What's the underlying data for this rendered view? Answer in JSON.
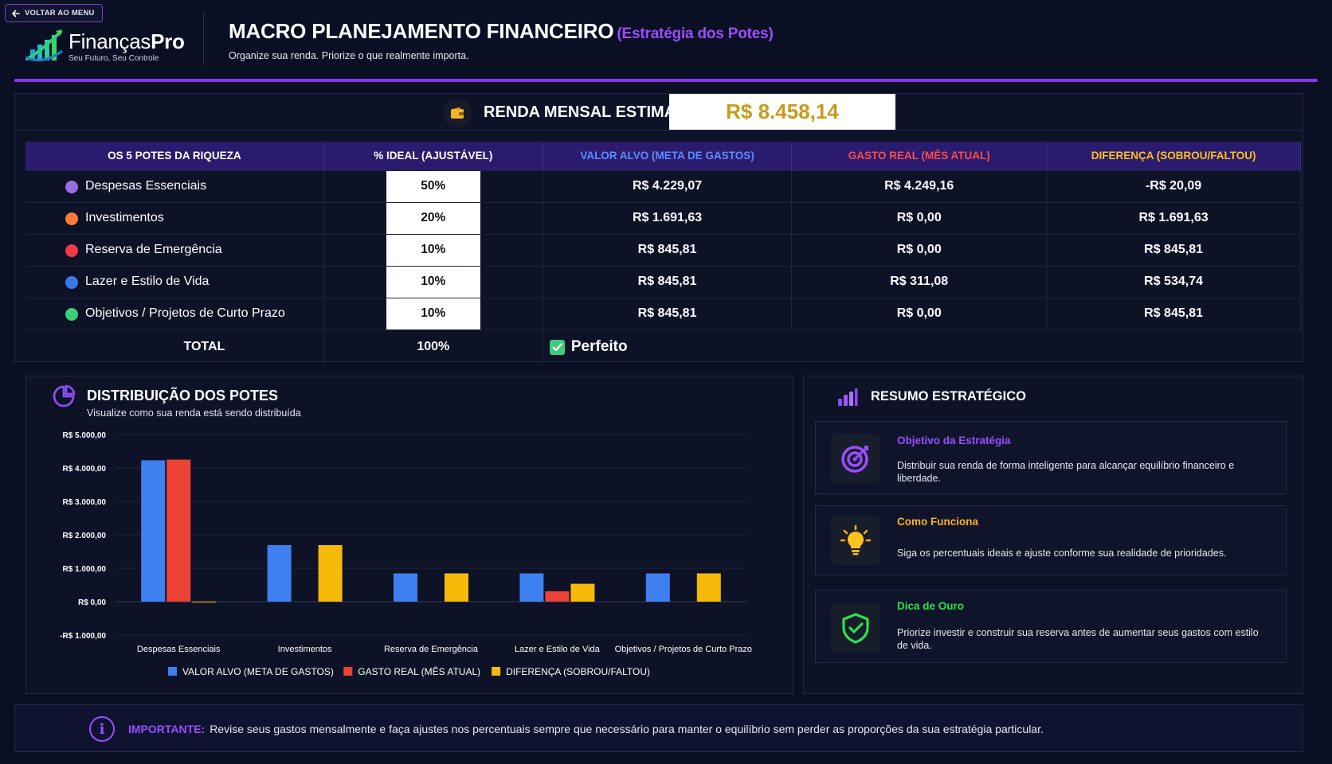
{
  "header": {
    "back_label": "VOLTAR AO MENU",
    "logo_name_a": "Finanças",
    "logo_name_b": "Pro",
    "logo_tagline": "Seu Futuro, Seu Controle",
    "title": "MACRO PLANEJAMENTO FINANCEIRO",
    "title_accent": "(Estratégia dos Potes)",
    "subtitle": "Organize sua renda. Priorize o que realmente importa."
  },
  "income": {
    "label": "RENDA MENSAL ESTIMADA:",
    "value": "R$ 8.458,14"
  },
  "table": {
    "headers": [
      {
        "label": "OS 5 POTES DA RIQUEZA",
        "color": "#ffffff"
      },
      {
        "label": "% IDEAL (AJUSTÁVEL)",
        "color": "#ffffff"
      },
      {
        "label": "VALOR ALVO (META DE GASTOS)",
        "color": "#5b8dff"
      },
      {
        "label": "GASTO REAL (MÊS ATUAL)",
        "color": "#ff4b4b"
      },
      {
        "label": "DIFERENÇA (SOBROU/FALTOU)",
        "color": "#ffc21a"
      }
    ],
    "rows": [
      {
        "name": "Despesas Essenciais",
        "dot_color": "#9b6ee0",
        "pct": "50%",
        "alvo": "R$ 4.229,07",
        "gasto": "R$ 4.249,16",
        "diff": "-R$ 20,09",
        "diff_status": "neg"
      },
      {
        "name": "Investimentos",
        "dot_color": "#ff7a3a",
        "pct": "20%",
        "alvo": "R$ 1.691,63",
        "gasto": "R$ 0,00",
        "diff": "R$ 1.691,63",
        "diff_status": "pos"
      },
      {
        "name": "Reserva de Emergência",
        "dot_color": "#f03a4a",
        "pct": "10%",
        "alvo": "R$ 845,81",
        "gasto": "R$ 0,00",
        "diff": "R$ 845,81",
        "diff_status": "pos"
      },
      {
        "name": "Lazer e Estilo de Vida",
        "dot_color": "#3a7ae8",
        "pct": "10%",
        "alvo": "R$ 845,81",
        "gasto": "R$ 311,08",
        "diff": "R$ 534,74",
        "diff_status": "pos"
      },
      {
        "name": "Objetivos / Projetos de Curto Prazo",
        "dot_color": "#3ccf7a",
        "pct": "10%",
        "alvo": "R$ 845,81",
        "gasto": "R$ 0,00",
        "diff": "R$ 845,81",
        "diff_status": "pos"
      }
    ],
    "total_label": "TOTAL",
    "total_pct": "100%",
    "status_label": "Perfeito"
  },
  "chart_section": {
    "title": "DISTRIBUIÇÃO DOS POTES",
    "subtitle": "Visualize como sua renda está sendo distribuída"
  },
  "chart_data": {
    "type": "bar",
    "categories": [
      "Despesas Essenciais",
      "Investimentos",
      "Reserva de Emergência",
      "Lazer e Estilo de Vida",
      "Objetivos / Projetos de Curto Prazo"
    ],
    "series": [
      {
        "name": "VALOR ALVO (META DE GASTOS)",
        "color": "#3f80f0",
        "values": [
          4229.07,
          1691.63,
          845.81,
          845.81,
          845.81
        ]
      },
      {
        "name": "GASTO REAL (MÊS ATUAL)",
        "color": "#ea4335",
        "values": [
          4249.16,
          0,
          0,
          311.08,
          0
        ]
      },
      {
        "name": "DIFERENÇA (SOBROU/FALTOU)",
        "color": "#f6bb08",
        "values": [
          -20.09,
          1691.63,
          845.81,
          534.74,
          845.81
        ]
      }
    ],
    "yticks": [
      5000,
      4000,
      3000,
      2000,
      1000,
      0,
      -1000
    ],
    "ytick_labels": [
      "R$ 5.000,00",
      "R$ 4.000,00",
      "R$ 3.000,00",
      "R$ 2.000,00",
      "R$ 1.000,00",
      "R$ 0,00",
      "-R$ 1.000,00"
    ],
    "ylim": [
      -1000,
      5000
    ],
    "grid": true,
    "legend": "bottom"
  },
  "summary": {
    "title": "RESUMO ESTRATÉGICO",
    "cards": [
      {
        "title": "Objetivo da Estratégia",
        "title_color": "#9b4dff",
        "text": "Distribuir sua renda de forma inteligente para alcançar equilíbrio financeiro e liberdade.",
        "icon": "target-icon"
      },
      {
        "title": "Como Funciona",
        "title_color": "#ffb21a",
        "text": "Siga os percentuais ideais e ajuste conforme sua realidade de prioridades.",
        "icon": "lightbulb-icon"
      },
      {
        "title": "Dica de Ouro",
        "title_color": "#2ee04a",
        "text": "Priorize investir e construir sua reserva antes de aumentar seus gastos com estilo de vida.",
        "icon": "shield-check-icon"
      }
    ]
  },
  "footer": {
    "important_label": "IMPORTANTE:",
    "text": "Revise seus gastos mensalmente e faça ajustes nos percentuais sempre que necessário para manter o equilíbrio sem perder as proporções da sua estratégia particular."
  }
}
